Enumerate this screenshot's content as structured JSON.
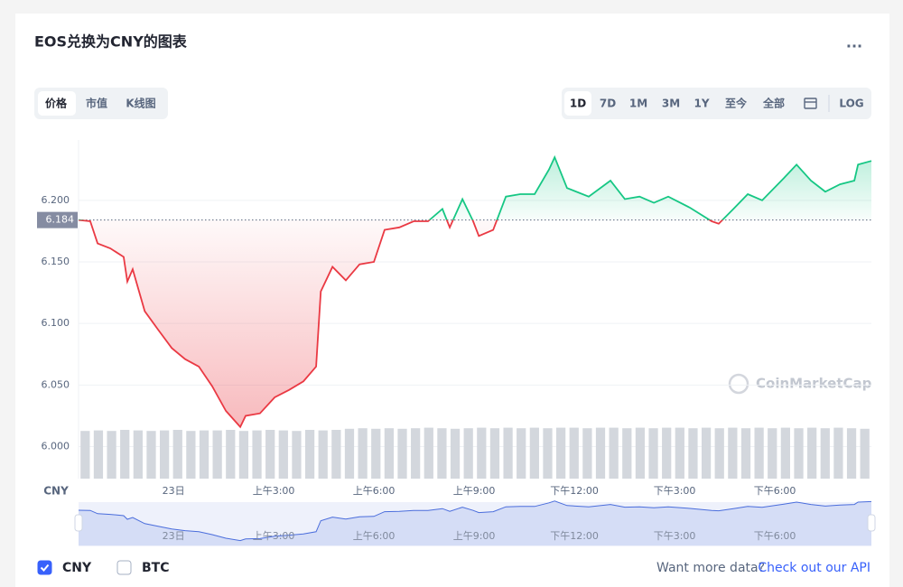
{
  "title": "EOS兑换为CNY的图表",
  "menu": "...",
  "tabs": [
    "价格",
    "市值",
    "K线图"
  ],
  "ranges": [
    "1D",
    "7D",
    "1M",
    "3M",
    "1Y",
    "至今",
    "全部"
  ],
  "log_button": "LOG",
  "watermark": "CoinMarketCap",
  "legend": [
    {
      "label": "CNY",
      "checked": true
    },
    {
      "label": "BTC",
      "checked": false
    }
  ],
  "footer": {
    "text": "Want more data?",
    "link": "Check out our API"
  },
  "chart_data": {
    "type": "line",
    "y_axis_unit": "CNY",
    "baseline": 6.184,
    "up_color": "#16c784",
    "down_color": "#ea3943",
    "grid": true,
    "xlim": [
      -2.84,
      20.89
    ],
    "xticks": [
      {
        "value": 0,
        "label": "23日"
      },
      {
        "value": 3,
        "label": "上午3:00"
      },
      {
        "value": 6,
        "label": "上午6:00"
      },
      {
        "value": 9,
        "label": "上午9:00"
      },
      {
        "value": 12,
        "label": "下午12:00"
      },
      {
        "value": 15,
        "label": "下午3:00"
      },
      {
        "value": 18,
        "label": "下午6:00"
      }
    ],
    "ylim": [
      5.974,
      6.249
    ],
    "yticks": [
      {
        "value": 6,
        "label": "6.000"
      },
      {
        "value": 6.05,
        "label": "6.050"
      },
      {
        "value": 6.1,
        "label": "6.100"
      },
      {
        "value": 6.15,
        "label": "6.150"
      },
      {
        "value": 6.2,
        "label": "6.200"
      }
    ],
    "x": [
      -2.84,
      -2.49,
      -2.27,
      -1.89,
      -1.49,
      -1.38,
      -1.22,
      -0.86,
      -0.46,
      -0.05,
      0.35,
      0.76,
      1.16,
      1.57,
      2.0,
      2.16,
      2.59,
      3.03,
      3.46,
      3.89,
      4.27,
      4.41,
      4.76,
      5.16,
      5.57,
      6.0,
      6.32,
      6.76,
      7.19,
      7.62,
      8.05,
      8.27,
      8.65,
      8.97,
      9.14,
      9.57,
      9.95,
      10.38,
      10.81,
      11.24,
      11.41,
      11.78,
      12.43,
      13.08,
      13.51,
      13.95,
      14.38,
      14.81,
      15.46,
      16.11,
      16.32,
      16.76,
      17.19,
      17.62,
      18.27,
      18.65,
      19.08,
      19.51,
      19.95,
      20.38,
      20.49,
      20.89
    ],
    "values": [
      6.184,
      6.183,
      6.165,
      6.161,
      6.154,
      6.134,
      6.144,
      6.11,
      6.095,
      6.08,
      6.071,
      6.065,
      6.049,
      6.029,
      6.016,
      6.025,
      6.027,
      6.04,
      6.046,
      6.053,
      6.065,
      6.126,
      6.146,
      6.135,
      6.148,
      6.15,
      6.176,
      6.178,
      6.183,
      6.183,
      6.193,
      6.178,
      6.201,
      6.183,
      6.171,
      6.176,
      6.203,
      6.205,
      6.205,
      6.225,
      6.235,
      6.21,
      6.203,
      6.216,
      6.201,
      6.203,
      6.198,
      6.203,
      6.194,
      6.183,
      6.181,
      6.193,
      6.205,
      6.2,
      6.218,
      6.229,
      6.216,
      6.207,
      6.213,
      6.216,
      6.229,
      6.232
    ],
    "volume": {
      "color": "#d3d7dd",
      "ylim": [
        0,
        100
      ],
      "values": [
        88,
        89,
        88,
        90,
        89,
        88,
        89,
        90,
        88,
        89,
        89,
        90,
        88,
        89,
        90,
        89,
        88,
        90,
        89,
        90,
        92,
        93,
        92,
        93,
        92,
        93,
        94,
        93,
        92,
        93,
        94,
        93,
        94,
        93,
        94,
        93,
        94,
        94,
        93,
        94,
        94,
        93,
        94,
        93,
        94,
        94,
        93,
        94,
        93,
        94,
        93,
        94,
        93,
        94,
        93,
        94,
        93,
        94,
        93,
        92
      ]
    },
    "navigator_color": "#4a6ddc"
  }
}
